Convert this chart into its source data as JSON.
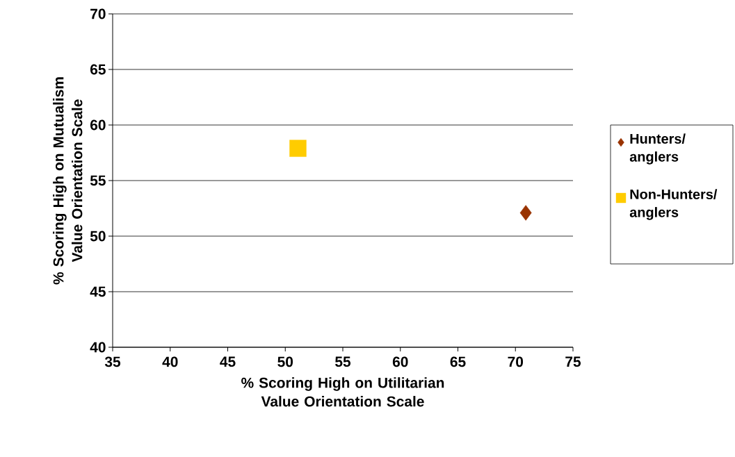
{
  "chart_data": {
    "type": "scatter",
    "xlabel": "% Scoring High on Utilitarian Value Orientation Scale",
    "ylabel": "% Scoring High on Mutualism Value Orientation Scale",
    "xlim": [
      35,
      75
    ],
    "xticks": [
      35,
      40,
      45,
      50,
      55,
      60,
      65,
      70,
      75
    ],
    "ylim": [
      40,
      70
    ],
    "yticks": [
      40,
      45,
      50,
      55,
      60,
      65,
      70
    ],
    "grid": "y",
    "legend": "right",
    "series": [
      {
        "name": "Hunters/ anglers",
        "color": "#993300",
        "marker": "diamond",
        "x": [
          70.9
        ],
        "values": [
          52.1
        ]
      },
      {
        "name": "Non-Hunters/ anglers",
        "color": "#ffcc00",
        "marker": "square",
        "x": [
          51.1
        ],
        "values": [
          57.9
        ]
      }
    ]
  }
}
